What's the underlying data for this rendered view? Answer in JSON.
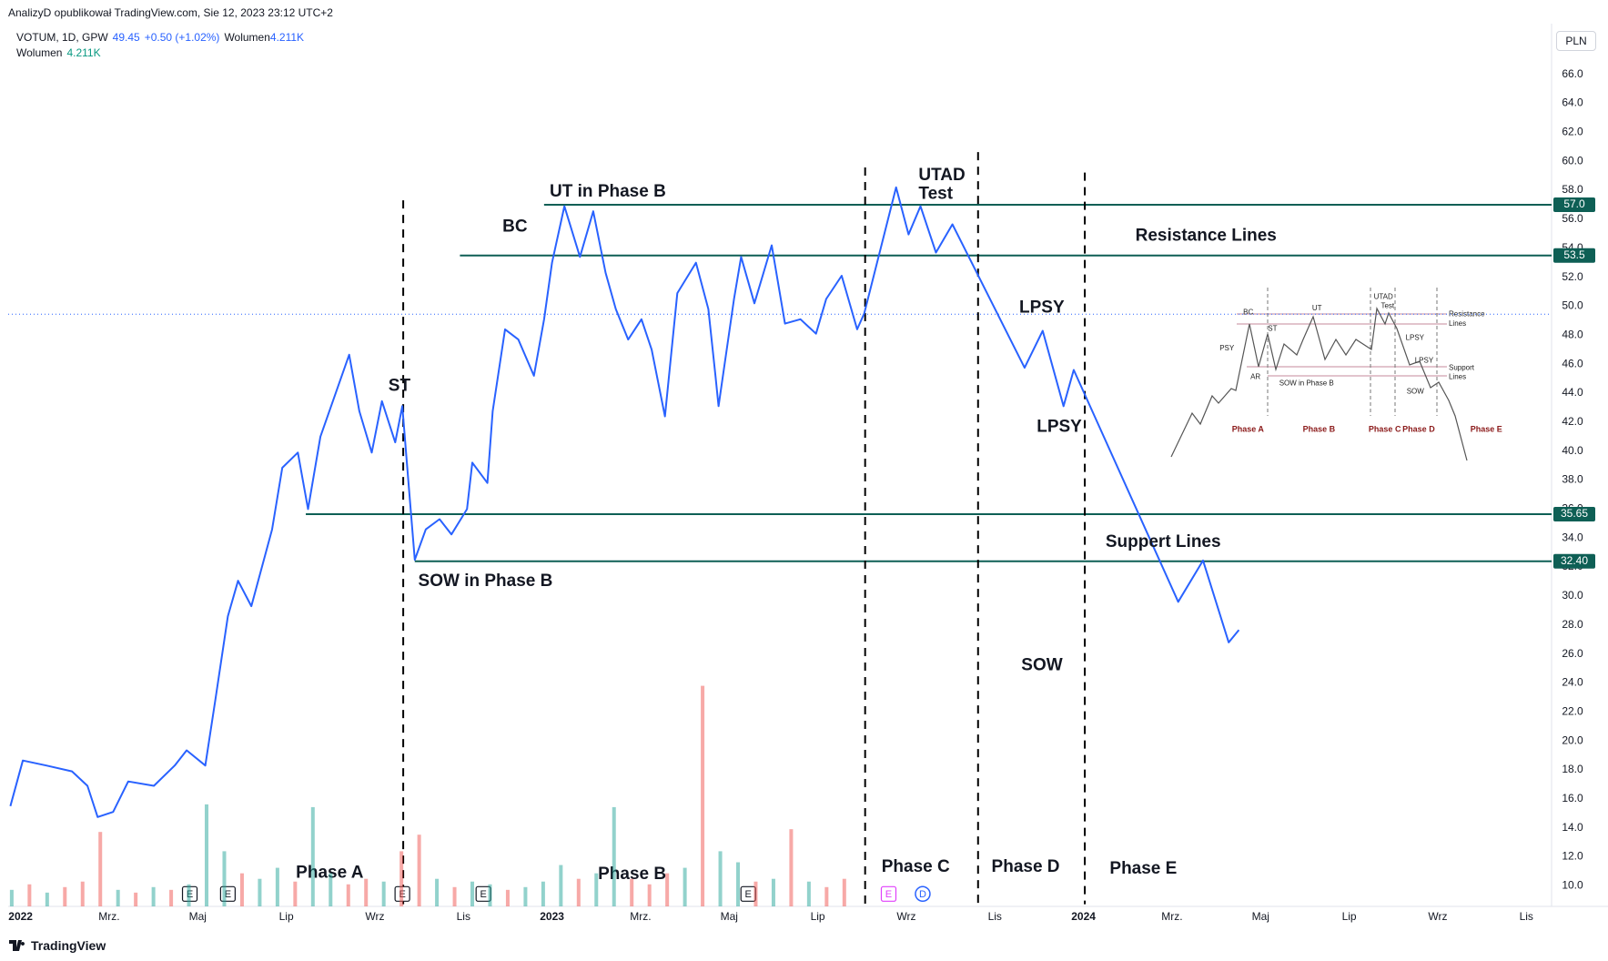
{
  "header": {
    "published": "AnalizyD opublikował TradingView.com, Sie 12, 2023 23:12 UTC+2",
    "symbol": "VOTUM, 1D, GPW",
    "price": 49.45,
    "change": "+0.50 (+1.02%)",
    "volume_label": "Wolumen",
    "volume": "4.211K",
    "currency": "PLN"
  },
  "footer": "TradingView",
  "chart_data": [
    {
      "type": "line",
      "color": "#2962ff",
      "x": [
        -0.23,
        0.05,
        0.58,
        1.16,
        1.51,
        1.74,
        2.09,
        2.43,
        3.01,
        3.48,
        3.75,
        4.17,
        4.4,
        4.68,
        4.91,
        5.21,
        5.68,
        5.91,
        6.26,
        6.49,
        6.77,
        7.42,
        7.65,
        7.93,
        8.16,
        8.46,
        8.62,
        8.76,
        8.9,
        9.15,
        9.46,
        9.73,
        10.08,
        10.2,
        10.54,
        10.66,
        10.94,
        11.24,
        11.59,
        11.82,
        12.0,
        12.28,
        12.63,
        12.93,
        13.21,
        13.44,
        13.72,
        14.02,
        14.25,
        14.55,
        14.83,
        15.25,
        15.53,
        15.69,
        15.76,
        16.11,
        16.27,
        16.57,
        16.96,
        17.26,
        17.61,
        17.96,
        18.19,
        18.54,
        18.89,
        19.05,
        19.77,
        20.05,
        20.32,
        20.67,
        21.04,
        22.67,
        23.08,
        23.55,
        23.78,
        26.14,
        26.7,
        27.28,
        27.51
      ],
      "values": [
        15.5,
        18.65,
        18.3,
        17.9,
        16.9,
        14.75,
        15.1,
        17.2,
        16.9,
        18.3,
        19.35,
        18.3,
        22.9,
        28.6,
        31.05,
        29.3,
        34.6,
        38.85,
        39.9,
        36.0,
        41.0,
        46.65,
        42.75,
        39.9,
        43.45,
        40.6,
        43.1,
        37.8,
        32.5,
        34.6,
        35.3,
        34.25,
        36.0,
        39.2,
        37.8,
        42.75,
        48.4,
        47.7,
        45.2,
        49.1,
        53.0,
        56.9,
        53.4,
        56.55,
        52.3,
        49.8,
        47.7,
        49.1,
        47.0,
        42.4,
        50.9,
        53.0,
        49.8,
        45.2,
        43.1,
        50.5,
        53.4,
        50.2,
        54.2,
        48.8,
        49.1,
        48.1,
        50.5,
        52.1,
        48.4,
        49.5,
        58.2,
        54.95,
        56.9,
        53.7,
        55.65,
        45.75,
        48.3,
        43.1,
        45.6,
        29.6,
        32.45,
        26.8,
        27.65
      ],
      "xlim": [
        -0.28,
        34.57
      ],
      "xticks": [
        {
          "value": 0,
          "label": "2022"
        },
        {
          "value": 2,
          "label": "Mrz."
        },
        {
          "value": 4,
          "label": "Maj"
        },
        {
          "value": 6,
          "label": "Lip"
        },
        {
          "value": 8,
          "label": "Wrz"
        },
        {
          "value": 10,
          "label": "Lis"
        },
        {
          "value": 12,
          "label": "2023"
        },
        {
          "value": 14,
          "label": "Mrz."
        },
        {
          "value": 16,
          "label": "Maj"
        },
        {
          "value": 18,
          "label": "Lip"
        },
        {
          "value": 20,
          "label": "Wrz"
        },
        {
          "value": 22,
          "label": "Lis"
        },
        {
          "value": 24,
          "label": "2024"
        },
        {
          "value": 26,
          "label": "Mrz."
        },
        {
          "value": 28,
          "label": "Maj"
        },
        {
          "value": 30,
          "label": "Lip"
        },
        {
          "value": 32,
          "label": "Wrz"
        },
        {
          "value": 34,
          "label": "Lis"
        }
      ],
      "ylim": [
        8.58,
        69.12
      ],
      "yticks": [
        {
          "value": 10,
          "label": "10.0"
        },
        {
          "value": 12,
          "label": "12.0"
        },
        {
          "value": 14,
          "label": "14.0"
        },
        {
          "value": 16,
          "label": "16.0"
        },
        {
          "value": 18,
          "label": "18.0"
        },
        {
          "value": 20,
          "label": "20.0"
        },
        {
          "value": 22,
          "label": "22.0"
        },
        {
          "value": 24,
          "label": "24.0"
        },
        {
          "value": 26,
          "label": "26.0"
        },
        {
          "value": 28,
          "label": "28.0"
        },
        {
          "value": 30,
          "label": "30.0"
        },
        {
          "value": 32,
          "label": "32.0"
        },
        {
          "value": 34,
          "label": "34.0"
        },
        {
          "value": 36,
          "label": "36.0"
        },
        {
          "value": 38,
          "label": "38.0"
        },
        {
          "value": 40,
          "label": "40.0"
        },
        {
          "value": 42,
          "label": "42.0"
        },
        {
          "value": 44,
          "label": "44.0"
        },
        {
          "value": 46,
          "label": "46.0"
        },
        {
          "value": 48,
          "label": "48.0"
        },
        {
          "value": 50,
          "label": "50.0"
        },
        {
          "value": 52,
          "label": "52.0"
        },
        {
          "value": 54,
          "label": "54.0"
        },
        {
          "value": 56,
          "label": "56.0"
        },
        {
          "value": 58,
          "label": "58.0"
        },
        {
          "value": 60,
          "label": "60.0"
        },
        {
          "value": 62,
          "label": "62.0"
        },
        {
          "value": 64,
          "label": "64.0"
        },
        {
          "value": 66,
          "label": "66.0"
        }
      ],
      "grid": false,
      "levels": [
        {
          "value": 57,
          "label": "57.0",
          "x": 11.82
        },
        {
          "value": 53.5,
          "label": "53.5",
          "x": 9.92
        },
        {
          "value": 35.65,
          "label": "35.65",
          "x": 6.44
        },
        {
          "value": 32.4,
          "label": "32.40",
          "x": 8.9
        }
      ],
      "level_color": "#0e5f55",
      "phase_lines": [
        8.64,
        19.07,
        21.62,
        24.03
      ],
      "events": [
        {
          "x": 3.82,
          "label": "E",
          "color": "#131722"
        },
        {
          "x": 4.68,
          "label": "E",
          "color": "#131722"
        },
        {
          "x": 8.62,
          "label": "E",
          "color": "#131722"
        },
        {
          "x": 10.45,
          "label": "E",
          "color": "#131722"
        },
        {
          "x": 16.43,
          "label": "E",
          "color": "#131722"
        },
        {
          "x": 19.6,
          "label": "E",
          "color": "#e040fb"
        },
        {
          "x": 20.37,
          "label": "D",
          "color": "#2962ff"
        }
      ],
      "annotations": [
        "UT in Phase B",
        "BC",
        "ST",
        "SOW in Phase B",
        "UTAD",
        "Test",
        "Resistance Lines",
        "LPSY",
        "LPSY",
        "Suppert Lines",
        "SOW",
        "Phase A",
        "Phase B",
        "Phase C",
        "Phase D",
        "Phase E"
      ],
      "inset": {
        "labels": [
          "BC",
          "UT",
          "UTAD",
          "Test",
          "Resistance",
          "Lines",
          "PSY",
          "ST",
          "AR",
          "SOW in Phase B",
          "LPSY",
          "LPSY",
          "Support",
          "Lines",
          "SOW"
        ],
        "phases": [
          "Phase A",
          "Phase B",
          "Phase C",
          "Phase D",
          "Phase E"
        ]
      }
    },
    {
      "type": "bar",
      "x": [
        -0.2,
        0.2,
        0.6,
        1.0,
        1.4,
        1.8,
        2.2,
        2.6,
        3.0,
        3.4,
        3.8,
        4.2,
        4.6,
        5.0,
        5.4,
        5.8,
        6.2,
        6.6,
        7.0,
        7.4,
        7.8,
        8.2,
        8.6,
        9.0,
        9.4,
        9.8,
        10.2,
        10.6,
        11.0,
        11.4,
        11.8,
        12.2,
        12.6,
        13.0,
        13.4,
        13.8,
        14.2,
        14.6,
        15.0,
        15.4,
        15.8,
        16.2,
        16.6,
        17.0,
        17.4,
        17.8,
        18.2,
        18.6
      ],
      "values": [
        6,
        8,
        5,
        7,
        9,
        27,
        6,
        5,
        7,
        6,
        8,
        37,
        20,
        12,
        10,
        14,
        9,
        36,
        12,
        8,
        10,
        9,
        20,
        26,
        10,
        7,
        9,
        8,
        6,
        7,
        9,
        15,
        10,
        12,
        36,
        10,
        8,
        12,
        14,
        80,
        20,
        16,
        9,
        10,
        28,
        9,
        7,
        10
      ],
      "colors": [
        "#26a69a",
        "#ef5350",
        "#26a69a",
        "#ef5350",
        "#ef5350",
        "#ef5350",
        "#26a69a",
        "#ef5350",
        "#26a69a",
        "#ef5350",
        "#26a69a",
        "#26a69a",
        "#26a69a",
        "#ef5350",
        "#26a69a",
        "#26a69a",
        "#ef5350",
        "#26a69a",
        "#26a69a",
        "#ef5350",
        "#ef5350",
        "#26a69a",
        "#ef5350",
        "#ef5350",
        "#26a69a",
        "#ef5350",
        "#26a69a",
        "#26a69a",
        "#ef5350",
        "#26a69a",
        "#26a69a",
        "#26a69a",
        "#ef5350",
        "#26a69a",
        "#26a69a",
        "#ef5350",
        "#ef5350",
        "#ef5350",
        "#26a69a",
        "#ef5350",
        "#26a69a",
        "#26a69a",
        "#ef5350",
        "#26a69a",
        "#ef5350",
        "#26a69a",
        "#ef5350",
        "#ef5350"
      ],
      "ylim": [
        0,
        100
      ]
    }
  ]
}
